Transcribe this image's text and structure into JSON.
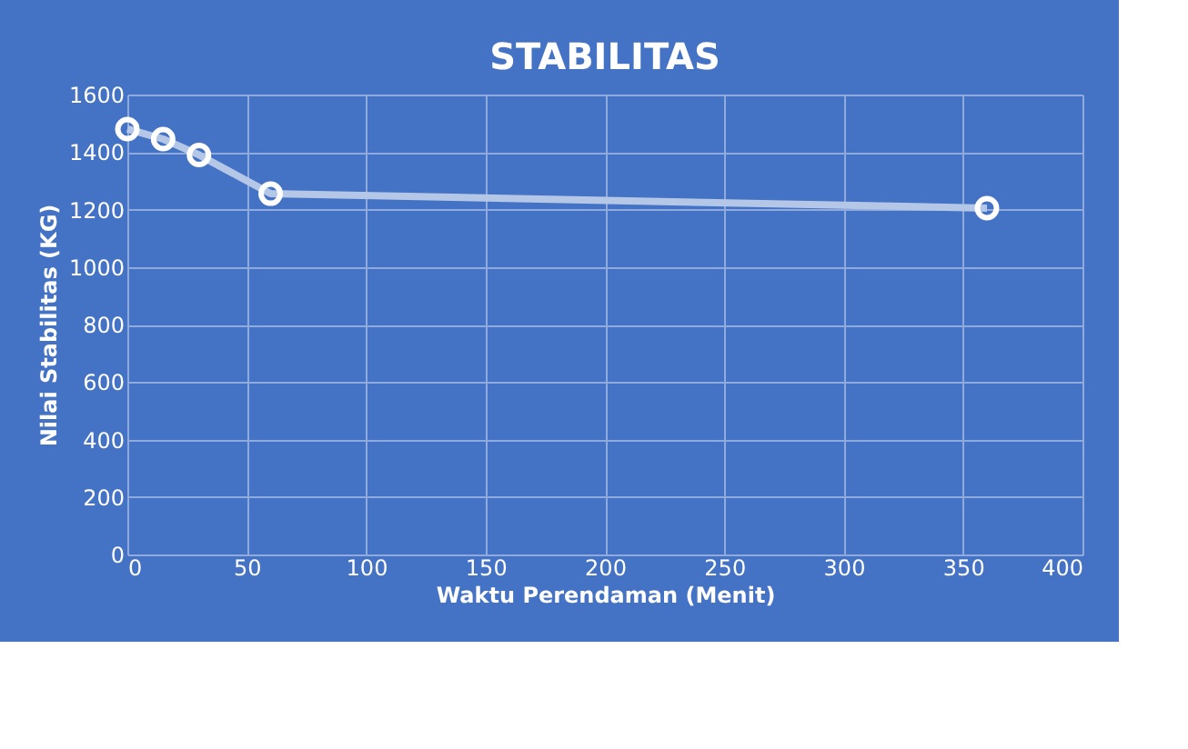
{
  "chart_data": {
    "type": "line",
    "title": "STABILITAS",
    "xlabel": "Waktu Perendaman (Menit)",
    "ylabel": "Nilai Stabilitas (KG)",
    "x": [
      0,
      15,
      30,
      60,
      360
    ],
    "series": [
      {
        "color": "#b4c7e7",
        "values": [
          1480,
          1445,
          1390,
          1255,
          1205
        ]
      }
    ],
    "xlim": [
      0,
      400
    ],
    "xticks": [
      0,
      50,
      100,
      150,
      200,
      250,
      300,
      350,
      400
    ],
    "ylim": [
      0,
      1600
    ],
    "yticks": [
      0,
      200,
      400,
      600,
      800,
      1000,
      1200,
      1400,
      1600
    ],
    "grid": true,
    "marker": "circle",
    "line_style": "solid"
  }
}
